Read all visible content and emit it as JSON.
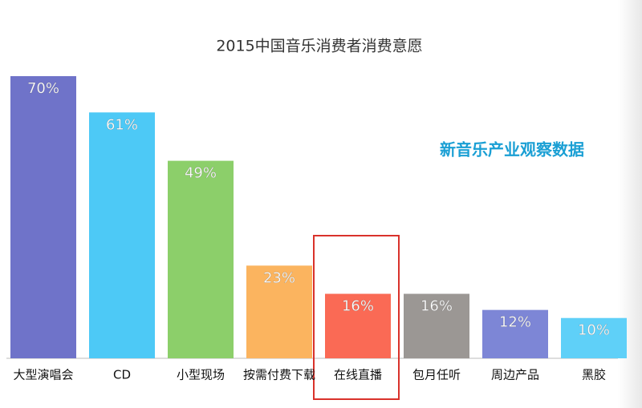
{
  "chart_data": {
    "type": "bar",
    "title": "2015中国音乐消费者消费意愿",
    "annotation": "新音乐产业观察数据",
    "categories": [
      "大型演唱会",
      "CD",
      "小型现场",
      "按需付费下载",
      "在线直播",
      "包月任听",
      "周边产品",
      "黑胶"
    ],
    "values": [
      70,
      61,
      49,
      23,
      16,
      16,
      12,
      10
    ],
    "value_labels": [
      "70%",
      "61%",
      "49%",
      "23%",
      "16%",
      "16%",
      "12%",
      "10%"
    ],
    "colors": [
      "#6f73c9",
      "#4dc9f6",
      "#8ccf6a",
      "#fbb45f",
      "#fa6a55",
      "#9b9794",
      "#7d86d6",
      "#5fd0f8"
    ]
  }
}
